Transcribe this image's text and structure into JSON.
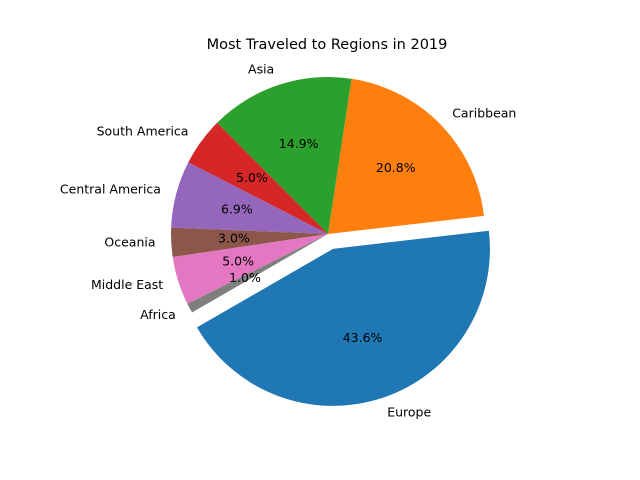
{
  "chart_data": {
    "type": "pie",
    "title": "Most Traveled to Regions in 2019",
    "categories": [
      "Europe",
      "Caribbean",
      "Asia",
      "South America",
      "Central America",
      "Oceania",
      "Middle East",
      "Africa"
    ],
    "values": [
      43.6,
      20.8,
      14.9,
      5.0,
      6.9,
      3.0,
      5.0,
      1.0
    ],
    "percent_labels": [
      "43.6%",
      "20.8%",
      "14.9%",
      "5.0%",
      "6.9%",
      "3.0%",
      "5.0%",
      "1.0%"
    ],
    "colors": [
      "#1f77b4",
      "#ff7f0e",
      "#2ca02c",
      "#d62728",
      "#9467bd",
      "#8c564b",
      "#e377c2",
      "#7f7f7f"
    ],
    "exploded": [
      "Europe"
    ],
    "start_angle_deg": 210,
    "direction": "counterclockwise"
  }
}
